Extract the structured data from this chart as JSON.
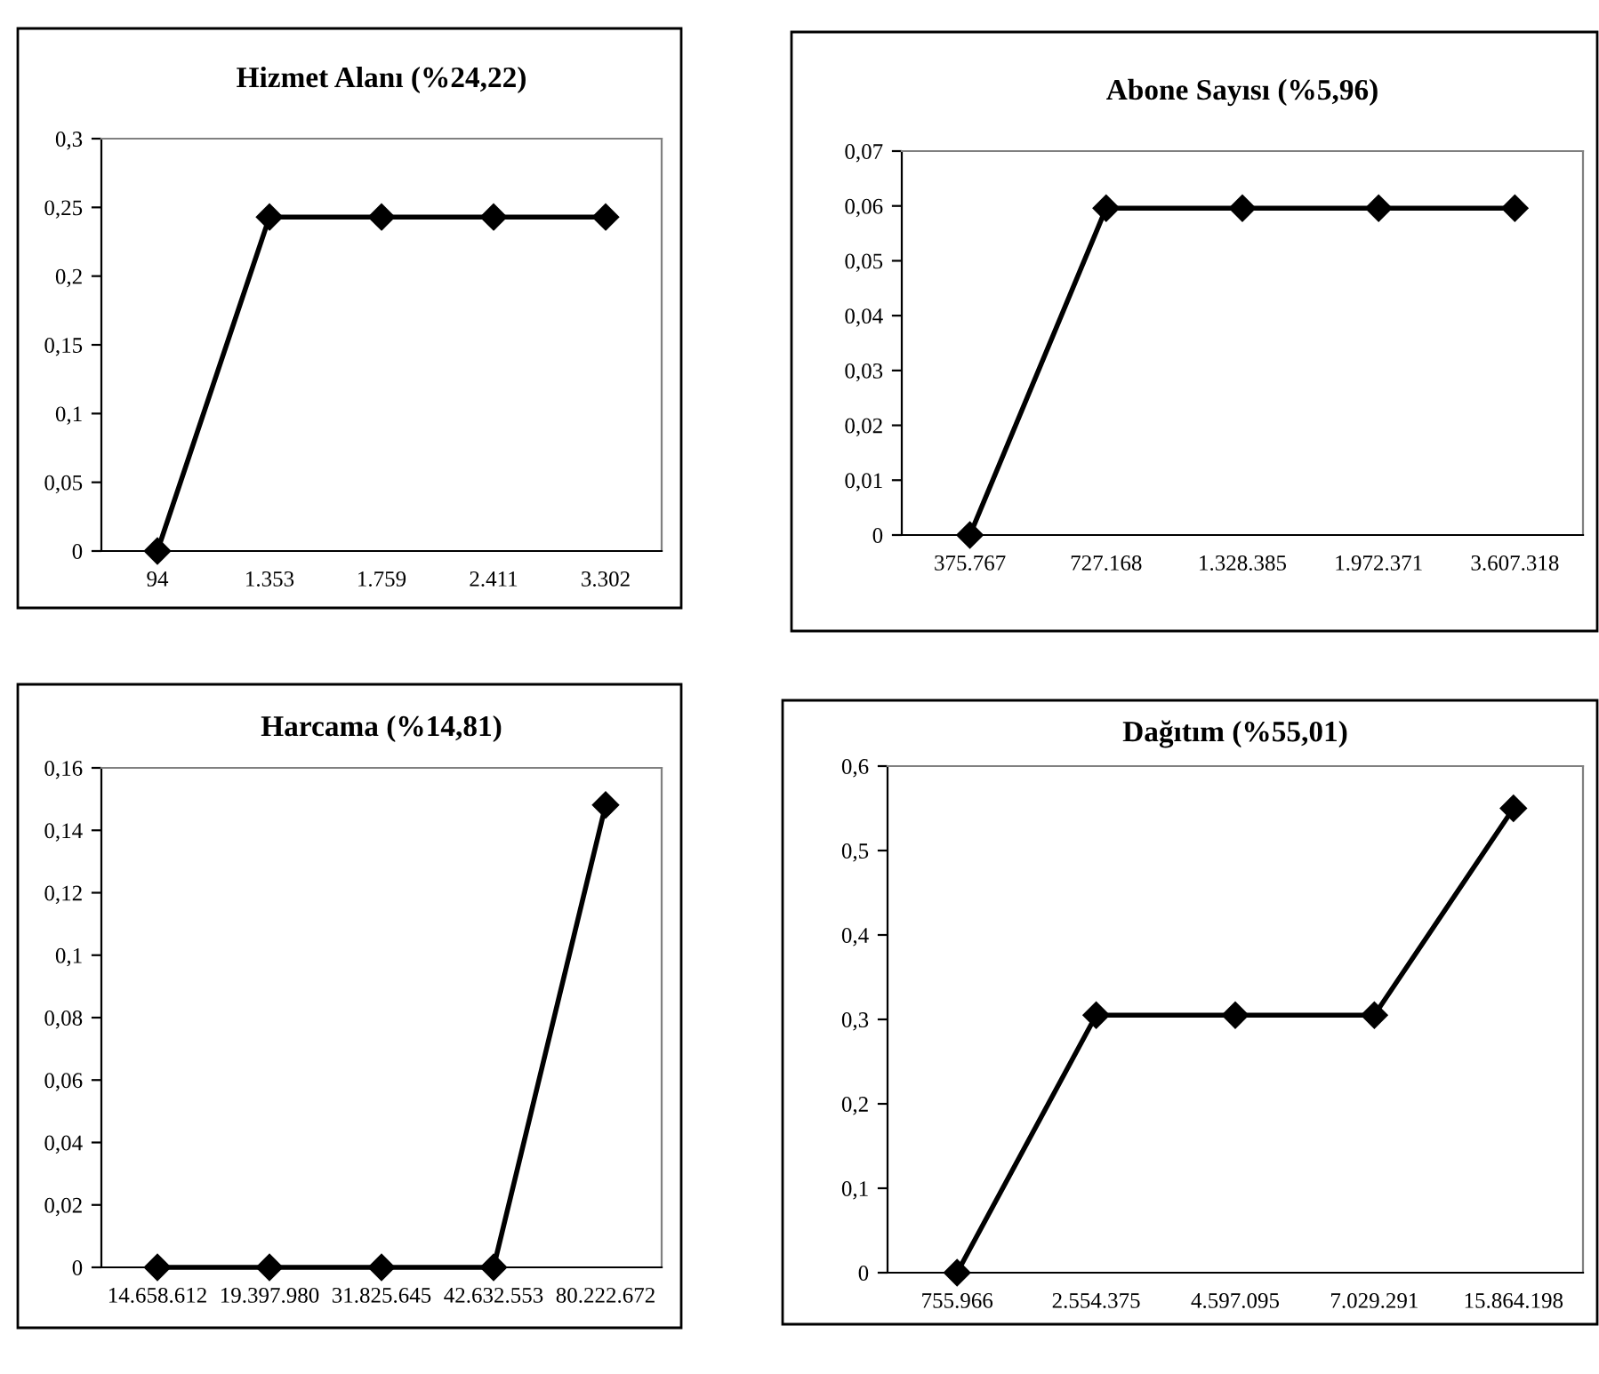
{
  "chart_data": [
    {
      "type": "line",
      "title": "Hizmet Alanı (%24,22)",
      "categories": [
        "94",
        "1.353",
        "1.759",
        "2.411",
        "3.302"
      ],
      "values": [
        0,
        0.243,
        0.243,
        0.243,
        0.243
      ],
      "color": "#000000",
      "marker": "diamond",
      "ylim": [
        0,
        0.3
      ],
      "yticks": [
        0,
        {
          "value": 0.05,
          "label": "0,05"
        },
        {
          "value": 0.1,
          "label": "0,1"
        },
        {
          "value": 0.15,
          "label": "0,15"
        },
        {
          "value": 0.2,
          "label": "0,2"
        },
        {
          "value": 0.25,
          "label": "0,25"
        },
        {
          "value": 0.3,
          "label": "0,3"
        }
      ],
      "grid": false,
      "legend": false
    },
    {
      "type": "line",
      "title": "Abone Sayısı (%5,96)",
      "categories": [
        "375.767",
        "727.168",
        "1.328.385",
        "1.972.371",
        "3.607.318"
      ],
      "values": [
        0,
        0.0596,
        0.0596,
        0.0596,
        0.0596
      ],
      "color": "#000000",
      "marker": "diamond",
      "ylim": [
        0,
        0.07
      ],
      "yticks": [
        0,
        {
          "value": 0.01,
          "label": "0,01"
        },
        {
          "value": 0.02,
          "label": "0,02"
        },
        {
          "value": 0.03,
          "label": "0,03"
        },
        {
          "value": 0.04,
          "label": "0,04"
        },
        {
          "value": 0.05,
          "label": "0,05"
        },
        {
          "value": 0.06,
          "label": "0,06"
        },
        {
          "value": 0.07,
          "label": "0,07"
        }
      ],
      "grid": false,
      "legend": false
    },
    {
      "type": "line",
      "title": "Harcama (%14,81)",
      "categories": [
        "14.658.612",
        "19.397.980",
        "31.825.645",
        "42.632.553",
        "80.222.672"
      ],
      "values": [
        0,
        0,
        0,
        0,
        0.1481
      ],
      "color": "#000000",
      "marker": "diamond",
      "ylim": [
        0,
        0.16
      ],
      "yticks": [
        0,
        {
          "value": 0.02,
          "label": "0,02"
        },
        {
          "value": 0.04,
          "label": "0,04"
        },
        {
          "value": 0.06,
          "label": "0,06"
        },
        {
          "value": 0.08,
          "label": "0,08"
        },
        {
          "value": 0.1,
          "label": "0,1"
        },
        {
          "value": 0.12,
          "label": "0,12"
        },
        {
          "value": 0.14,
          "label": "0,14"
        },
        {
          "value": 0.16,
          "label": "0,16"
        }
      ],
      "grid": false,
      "legend": false
    },
    {
      "type": "line",
      "title": "Dağıtım (%55,01)",
      "categories": [
        "755.966",
        "2.554.375",
        "4.597.095",
        "7.029.291",
        "15.864.198"
      ],
      "values": [
        0,
        0.305,
        0.305,
        0.305,
        0.55
      ],
      "color": "#000000",
      "marker": "diamond",
      "ylim": [
        0,
        0.6
      ],
      "yticks": [
        0,
        {
          "value": 0.1,
          "label": "0,1"
        },
        {
          "value": 0.2,
          "label": "0,2"
        },
        {
          "value": 0.3,
          "label": "0,3"
        },
        {
          "value": 0.4,
          "label": "0,4"
        },
        {
          "value": 0.5,
          "label": "0,5"
        },
        {
          "value": 0.6,
          "label": "0,6"
        }
      ],
      "grid": false,
      "legend": false
    }
  ]
}
